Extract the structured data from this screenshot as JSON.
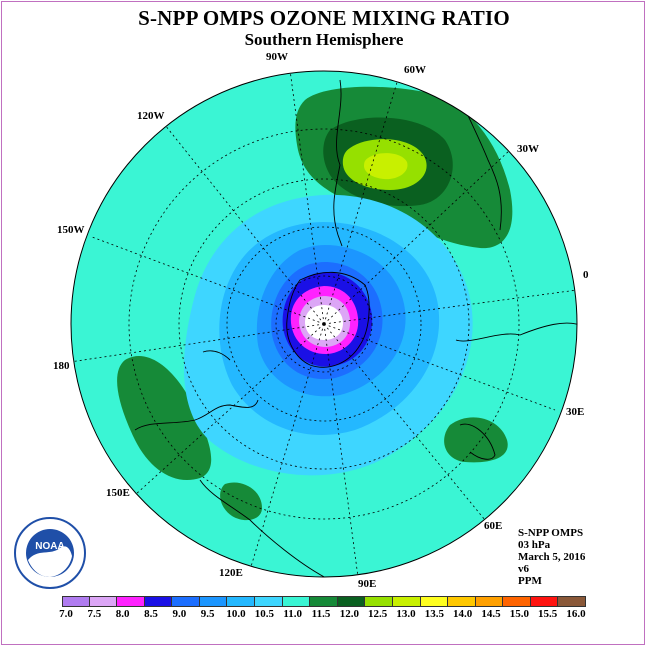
{
  "title": "S-NPP OMPS OZONE MIXING RATIO",
  "subtitle": "Southern Hemisphere",
  "longitude_labels": [
    "0",
    "30E",
    "60E",
    "90E",
    "120E",
    "150E",
    "180",
    "150W",
    "120W",
    "90W",
    "60W",
    "30W"
  ],
  "info": {
    "line1": "S-NPP OMPS",
    "line2": "03 hPa",
    "line3": "March 5, 2016",
    "line4": "v6",
    "line5": "PPM"
  },
  "logo_text": "NOAA",
  "colorbar": {
    "ticks": [
      "7.0",
      "7.5",
      "8.0",
      "8.5",
      "9.0",
      "9.5",
      "10.0",
      "10.5",
      "11.0",
      "11.5",
      "12.0",
      "12.5",
      "13.0",
      "13.5",
      "14.0",
      "14.5",
      "15.0",
      "15.5",
      "16.0"
    ],
    "colors": [
      "#b07cf0",
      "#dca6f6",
      "#ff22ff",
      "#1a10e6",
      "#1c6eff",
      "#1c96ff",
      "#24b8ff",
      "#3ed6ff",
      "#3af5d4",
      "#168a38",
      "#0a6020",
      "#96e000",
      "#c8f000",
      "#ffff20",
      "#ffc800",
      "#ffa000",
      "#ff6400",
      "#ff1410",
      "#8a5838"
    ]
  },
  "chart_data": {
    "type": "heatmap",
    "projection": "south-polar-stereographic",
    "variable": "Ozone mixing ratio",
    "level_hPa": 3,
    "units": "PPM",
    "range": [
      7.0,
      16.0
    ],
    "features": [
      {
        "region": "pole",
        "level": 7.5
      },
      {
        "region": "polar ring",
        "level": 8.0
      },
      {
        "region": "polar vortex edge",
        "level": 9.0
      },
      {
        "region": "mid-latitude band",
        "level": 10.0
      },
      {
        "region": "outer band",
        "level": 11.0
      },
      {
        "region": "South America / South Atlantic high",
        "level": 12.5
      },
      {
        "region": "Indian Ocean lobe",
        "level": 11.5
      },
      {
        "region": "Pacific lobe near 165W",
        "level": 11.5
      }
    ]
  }
}
